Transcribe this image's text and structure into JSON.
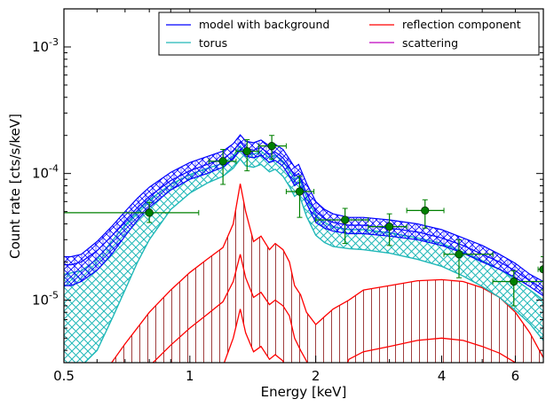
{
  "chart_data": {
    "type": "line",
    "xlabel": "Energy [keV]",
    "ylabel": "Count rate [cts/s/keV]",
    "xscale": "log",
    "yscale": "log",
    "xlim": [
      0.5,
      7.0
    ],
    "ylim": [
      3.2e-06,
      0.002
    ],
    "x_ticks": [
      {
        "value": 0.5,
        "label": "0.5"
      },
      {
        "value": 1,
        "label": "1"
      },
      {
        "value": 2,
        "label": "2"
      },
      {
        "value": 4,
        "label": "4"
      },
      {
        "value": 6,
        "label": "6"
      }
    ],
    "y_ticks": [
      {
        "value": 1e-05,
        "base": "10",
        "exp": "-5"
      },
      {
        "value": 0.0001,
        "base": "10",
        "exp": "-4"
      },
      {
        "value": 0.001,
        "base": "10",
        "exp": "-3"
      }
    ],
    "grid": false,
    "legend_placement": "top-right",
    "legend": [
      {
        "label": "model with background",
        "color": "#0000ff"
      },
      {
        "label": "reflection component",
        "color": "#ff0000"
      },
      {
        "label": "torus",
        "color": "#20b8b8"
      },
      {
        "label": "scattering",
        "color": "#bf00bf"
      }
    ],
    "colors": {
      "model": "#0000ff",
      "torus": "#20b8b8",
      "reflection": "#ff0000",
      "reflection_hatch": "#a04040",
      "scattering": "#bf00bf",
      "data": "#008000"
    },
    "series": [
      {
        "name": "model with background",
        "x": [
          0.5,
          0.52,
          0.55,
          0.6,
          0.65,
          0.7,
          0.75,
          0.8,
          0.9,
          1.0,
          1.1,
          1.2,
          1.27,
          1.32,
          1.36,
          1.42,
          1.48,
          1.55,
          1.6,
          1.67,
          1.73,
          1.78,
          1.82,
          1.9,
          2.0,
          2.1,
          2.2,
          2.4,
          2.6,
          3.0,
          3.5,
          4.0,
          4.5,
          5.0,
          5.5,
          6.0,
          6.5,
          7.0
        ],
        "upper": [
          2.2e-05,
          2.2e-05,
          2.3e-05,
          2.9e-05,
          3.8e-05,
          5e-05,
          6.4e-05,
          7.8e-05,
          0.000102,
          0.000122,
          0.000136,
          0.00015,
          0.000172,
          0.000202,
          0.00018,
          0.000175,
          0.000184,
          0.000165,
          0.00017,
          0.000155,
          0.00013,
          0.000112,
          0.000118,
          8.4e-05,
          6e-05,
          5.2e-05,
          4.8e-05,
          4.5e-05,
          4.5e-05,
          4.3e-05,
          4e-05,
          3.6e-05,
          3.1e-05,
          2.7e-05,
          2.3e-05,
          1.95e-05,
          1.6e-05,
          1.4e-05
        ],
        "middle": [
          1.9e-05,
          1.9e-05,
          2e-05,
          2.45e-05,
          3.2e-05,
          4.2e-05,
          5.4e-05,
          6.6e-05,
          8.8e-05,
          0.000105,
          0.000118,
          0.00013,
          0.00015,
          0.000178,
          0.000157,
          0.000153,
          0.00016,
          0.000142,
          0.000148,
          0.000133,
          0.000112,
          9.5e-05,
          0.0001,
          7e-05,
          5e-05,
          4.4e-05,
          4.1e-05,
          3.9e-05,
          3.9e-05,
          3.7e-05,
          3.45e-05,
          3.1e-05,
          2.7e-05,
          2.3e-05,
          2e-05,
          1.7e-05,
          1.42e-05,
          1.22e-05
        ],
        "lower": [
          1.3e-05,
          1.3e-05,
          1.4e-05,
          1.72e-05,
          2.3e-05,
          3.2e-05,
          4.3e-05,
          5.4e-05,
          7.4e-05,
          9e-05,
          0.0001,
          0.000112,
          0.00013,
          0.000155,
          0.000137,
          0.000133,
          0.000139,
          0.000122,
          0.000127,
          0.000114,
          9.5e-05,
          8e-05,
          8.5e-05,
          5.8e-05,
          4.1e-05,
          3.7e-05,
          3.5e-05,
          3.35e-05,
          3.35e-05,
          3.2e-05,
          3e-05,
          2.7e-05,
          2.35e-05,
          2e-05,
          1.75e-05,
          1.5e-05,
          1.28e-05,
          1.08e-05
        ]
      },
      {
        "name": "torus",
        "x": [
          0.5,
          0.55,
          0.6,
          0.65,
          0.7,
          0.75,
          0.8,
          0.9,
          1.0,
          1.1,
          1.2,
          1.27,
          1.32,
          1.36,
          1.42,
          1.48,
          1.55,
          1.6,
          1.67,
          1.73,
          1.78,
          1.82,
          1.9,
          2.0,
          2.1,
          2.2,
          2.4,
          2.6,
          3.0,
          3.5,
          4.0,
          4.5,
          5.0,
          5.5,
          6.0,
          6.5,
          7.0
        ],
        "upper": [
          1.6e-05,
          1.7e-05,
          2.1e-05,
          2.9e-05,
          3.9e-05,
          5e-05,
          6.2e-05,
          8.2e-05,
          9.8e-05,
          0.00011,
          0.00012,
          0.000138,
          0.000165,
          0.000146,
          0.000142,
          0.00015,
          0.000133,
          0.00014,
          0.000125,
          0.000105,
          9e-05,
          9.5e-05,
          6.5e-05,
          4.7e-05,
          4.1e-05,
          3.8e-05,
          3.6e-05,
          3.6e-05,
          3.4e-05,
          3.1e-05,
          2.8e-05,
          2.4e-05,
          2.05e-05,
          1.75e-05,
          1.45e-05,
          1.2e-05,
          1e-05
        ],
        "lower": [
          3e-06,
          3e-06,
          4e-06,
          7e-06,
          1.2e-05,
          2e-05,
          3e-05,
          5.2e-05,
          7e-05,
          8.4e-05,
          9.5e-05,
          0.00011,
          0.00013,
          0.000115,
          0.000112,
          0.000118,
          0.000103,
          0.000108,
          9.5e-05,
          7.9e-05,
          6.6e-05,
          7e-05,
          4.6e-05,
          3.25e-05,
          2.85e-05,
          2.65e-05,
          2.55e-05,
          2.5e-05,
          2.35e-05,
          2.1e-05,
          1.85e-05,
          1.55e-05,
          1.28e-05,
          1.05e-05,
          8.3e-06,
          6.5e-06,
          4.8e-06
        ]
      },
      {
        "name": "reflection component",
        "x": [
          0.65,
          0.7,
          0.8,
          0.9,
          1.0,
          1.1,
          1.2,
          1.27,
          1.32,
          1.36,
          1.42,
          1.48,
          1.55,
          1.6,
          1.67,
          1.73,
          1.78,
          1.84,
          1.9,
          2.0,
          2.1,
          2.2,
          2.4,
          2.6,
          3.0,
          3.5,
          4.0,
          4.5,
          5.0,
          5.5,
          6.0,
          6.5,
          7.0
        ],
        "upper": [
          3.2e-06,
          4.5e-06,
          8e-06,
          1.2e-05,
          1.65e-05,
          2.1e-05,
          2.6e-05,
          4e-05,
          8.3e-05,
          5e-05,
          2.9e-05,
          3.2e-05,
          2.5e-05,
          2.8e-05,
          2.5e-05,
          2e-05,
          1.3e-05,
          1.1e-05,
          8e-06,
          6.4e-06,
          7.4e-06,
          8.5e-06,
          1e-05,
          1.2e-05,
          1.3e-05,
          1.42e-05,
          1.45e-05,
          1.4e-05,
          1.25e-05,
          1.05e-05,
          8e-06,
          5.5e-06,
          3.5e-06
        ],
        "middle": [
          0.0,
          0.0,
          3e-06,
          4.4e-06,
          6e-06,
          7.7e-06,
          9.7e-06,
          1.4e-05,
          2.3e-05,
          1.5e-05,
          1.05e-05,
          1.15e-05,
          9.2e-06,
          1e-05,
          9e-06,
          7.5e-06,
          5e-06,
          4e-06,
          3.3e-06,
          0.0,
          0.0,
          0.0,
          3.4e-06,
          3.9e-06,
          4.3e-06,
          4.8e-06,
          5e-06,
          4.8e-06,
          4.3e-06,
          3.8e-06,
          3.2e-06,
          0.0,
          0.0
        ],
        "lower": [
          0.0,
          0.0,
          0.0,
          0.0,
          0.0,
          0.0,
          3e-06,
          5e-06,
          8.5e-06,
          5.5e-06,
          3.9e-06,
          4.3e-06,
          3.4e-06,
          3.7e-06,
          3.3e-06,
          0.0,
          0.0,
          0.0,
          0.0,
          0.0,
          0.0,
          0.0,
          0.0,
          0.0,
          0.0,
          0.0,
          0.0,
          0.0,
          0.0,
          0.0,
          0.0,
          0.0,
          0.0
        ]
      }
    ],
    "data_points": [
      {
        "x": 0.8,
        "y": 4.9e-05,
        "xlo": 0.5,
        "xhi": 1.05,
        "ylo": 4.1e-05,
        "yhi": 5.9e-05
      },
      {
        "x": 1.2,
        "y": 0.000125,
        "xlo": 1.11,
        "xhi": 1.29,
        "ylo": 8.2e-05,
        "yhi": 0.000155
      },
      {
        "x": 1.37,
        "y": 0.00015,
        "xlo": 1.29,
        "xhi": 1.46,
        "ylo": 0.000105,
        "yhi": 0.000185
      },
      {
        "x": 1.57,
        "y": 0.000165,
        "xlo": 1.46,
        "xhi": 1.7,
        "ylo": 0.00013,
        "yhi": 0.0002
      },
      {
        "x": 1.83,
        "y": 7.2e-05,
        "xlo": 1.7,
        "xhi": 1.98,
        "ylo": 4.5e-05,
        "yhi": 9.5e-05
      },
      {
        "x": 2.35,
        "y": 4.3e-05,
        "xlo": 2.0,
        "xhi": 2.67,
        "ylo": 2.8e-05,
        "yhi": 5.3e-05
      },
      {
        "x": 3.0,
        "y": 3.8e-05,
        "xlo": 2.67,
        "xhi": 3.3,
        "ylo": 2.7e-05,
        "yhi": 4.8e-05
      },
      {
        "x": 3.65,
        "y": 5.1e-05,
        "xlo": 3.3,
        "xhi": 4.05,
        "ylo": 3.7e-05,
        "yhi": 6.2e-05
      },
      {
        "x": 4.4,
        "y": 2.3e-05,
        "xlo": 4.05,
        "xhi": 5.3,
        "ylo": 1.5e-05,
        "yhi": 3e-05
      },
      {
        "x": 5.95,
        "y": 1.4e-05,
        "xlo": 5.3,
        "xhi": 7.0,
        "ylo": 9e-06,
        "yhi": 1.7e-05
      },
      {
        "x": 7.0,
        "y": 1.75e-05,
        "xlo": 6.8,
        "xhi": 7.0,
        "ylo": 1.2e-05,
        "yhi": 2.2e-05
      }
    ]
  }
}
